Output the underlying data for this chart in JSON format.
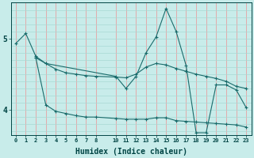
{
  "title": "",
  "xlabel": "Humidex (Indice chaleur)",
  "bg_color": "#c8ecea",
  "line_color": "#1a6b6b",
  "grid_color_v": "#e8a0a0",
  "grid_color_h": "#a8d8d4",
  "xlim": [
    -0.5,
    23.5
  ],
  "ylim": [
    3.65,
    5.5
  ],
  "yticks": [
    4,
    5
  ],
  "xticks": [
    0,
    1,
    2,
    3,
    4,
    5,
    6,
    7,
    8,
    10,
    11,
    12,
    13,
    14,
    15,
    16,
    17,
    18,
    19,
    20,
    21,
    22,
    23
  ],
  "line1_x": [
    0,
    1,
    2,
    3,
    4,
    5,
    6,
    7,
    8,
    10,
    11,
    12,
    13,
    14,
    15,
    16,
    17,
    18,
    19,
    20,
    21,
    22,
    23
  ],
  "line1_y": [
    4.93,
    5.07,
    4.75,
    4.65,
    4.57,
    4.52,
    4.5,
    4.48,
    4.47,
    4.46,
    4.45,
    4.5,
    4.6,
    4.65,
    4.63,
    4.58,
    4.54,
    4.5,
    4.47,
    4.44,
    4.4,
    4.33,
    4.3
  ],
  "line2_x": [
    2,
    3,
    4,
    5,
    6,
    7,
    8,
    10,
    11,
    12,
    13,
    14,
    15,
    16,
    17,
    18,
    19,
    20,
    21,
    22,
    23
  ],
  "line2_y": [
    4.73,
    4.07,
    3.98,
    3.95,
    3.92,
    3.9,
    3.9,
    3.88,
    3.87,
    3.87,
    3.87,
    3.89,
    3.89,
    3.85,
    3.84,
    3.83,
    3.82,
    3.81,
    3.8,
    3.79,
    3.76
  ],
  "line3_x": [
    2,
    3,
    10,
    11,
    12,
    13,
    14,
    15,
    16,
    17,
    18,
    19,
    20,
    21,
    22,
    23
  ],
  "line3_y": [
    4.73,
    4.65,
    4.47,
    4.3,
    4.47,
    4.8,
    5.02,
    5.42,
    5.1,
    4.62,
    3.68,
    3.68,
    4.35,
    4.35,
    4.28,
    4.03
  ]
}
